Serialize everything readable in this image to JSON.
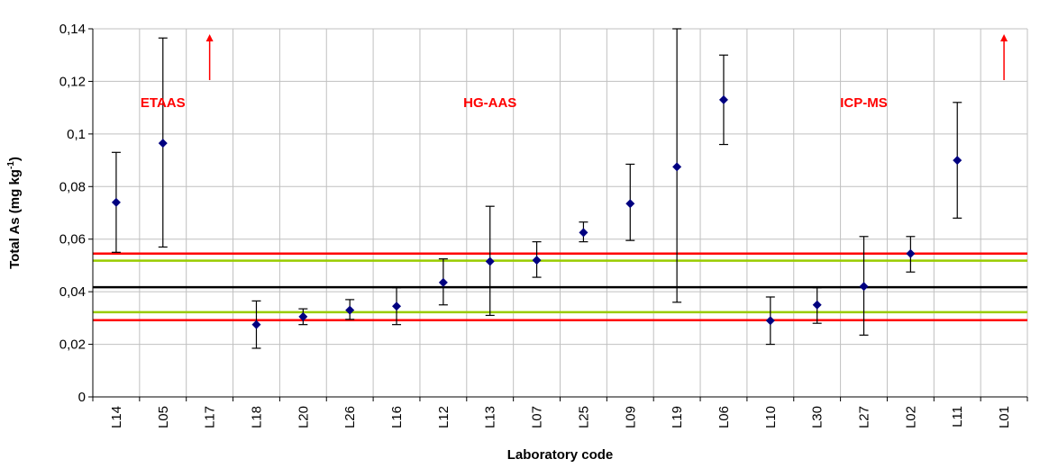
{
  "chart_data": {
    "type": "scatter",
    "title": "",
    "xlabel": "Laboratory code",
    "ylabel": "Total As (mg kg",
    "ylabel_sup": "-1",
    "ylabel_end": ")",
    "ylim": [
      0,
      0.14
    ],
    "y_ticks": [
      0,
      0.02,
      0.04,
      0.06,
      0.08,
      0.1,
      0.12,
      0.14
    ],
    "y_tick_labels": [
      "0",
      "0,02",
      "0,04",
      "0,06",
      "0,08",
      "0,1",
      "0,12",
      "0,14"
    ],
    "grid": true,
    "categories": [
      "L14",
      "L05",
      "L17",
      "L18",
      "L20",
      "L26",
      "L16",
      "L12",
      "L13",
      "L07",
      "L25",
      "L09",
      "L19",
      "L06",
      "L10",
      "L30",
      "L27",
      "L02",
      "L11",
      "L01"
    ],
    "values": [
      0.074,
      0.0965,
      null,
      0.0275,
      0.0305,
      0.033,
      0.0345,
      0.0435,
      0.0515,
      0.052,
      0.0625,
      0.0735,
      0.0875,
      0.113,
      0.029,
      0.035,
      0.042,
      0.0545,
      0.09,
      null
    ],
    "error_low": [
      0.055,
      0.057,
      null,
      0.0185,
      0.0275,
      0.0295,
      0.0275,
      0.035,
      0.031,
      0.0455,
      0.059,
      0.0595,
      0.036,
      0.096,
      0.02,
      0.028,
      0.0235,
      0.0475,
      0.068,
      null
    ],
    "error_high": [
      0.093,
      0.1365,
      null,
      0.0365,
      0.0335,
      0.037,
      0.0415,
      0.0525,
      0.0725,
      0.059,
      0.0665,
      0.0885,
      0.14,
      0.13,
      0.038,
      0.0415,
      0.061,
      0.061,
      0.112,
      null
    ],
    "off_scale_arrows": [
      "L17",
      "L01"
    ],
    "reference_lines": [
      {
        "value": 0.0417,
        "color": "#000000"
      },
      {
        "value": 0.0518,
        "color": "#99cc00"
      },
      {
        "value": 0.0322,
        "color": "#99cc00"
      },
      {
        "value": 0.0545,
        "color": "#ff0000"
      },
      {
        "value": 0.0292,
        "color": "#ff0000"
      }
    ],
    "annotations": [
      {
        "text": "ETAAS",
        "category": "L05"
      },
      {
        "text": "HG-AAS",
        "category": "L13"
      },
      {
        "text": "ICP-MS",
        "category": "L27"
      }
    ],
    "annotation_value": 0.112,
    "colors": {
      "marker": "#000080",
      "errorbar": "#000000",
      "grid": "#c0c0c0",
      "annotation": "#ff0000",
      "arrow": "#ff0000"
    }
  }
}
